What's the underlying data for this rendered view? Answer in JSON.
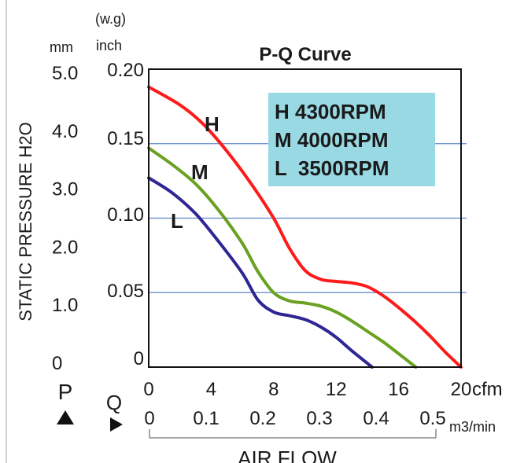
{
  "chart_data": {
    "type": "line",
    "title": "P-Q Curve",
    "ylabel": "STATIC PRESSURE H2O",
    "xlabel": "AIR FLOW",
    "y_axis_inch": {
      "unit_top": "(w.g)",
      "unit": "inch",
      "range": [
        0,
        0.2
      ],
      "ticks": [
        "0.20",
        "0.15",
        "0.10",
        "0.05",
        "0"
      ]
    },
    "y_axis_mm": {
      "unit": "mm",
      "ticks": [
        "5.0",
        "4.0",
        "3.0",
        "2.0",
        "1.0",
        "0"
      ],
      "values": [
        5.0,
        4.0,
        3.0,
        2.0,
        1.0,
        0
      ]
    },
    "x_axis_cfm": {
      "unit": "cfm",
      "range": [
        0,
        20
      ],
      "ticks": [
        "0",
        "4",
        "8",
        "12",
        "16",
        "20"
      ]
    },
    "x_axis_m3": {
      "unit": "m3/min",
      "ticks": [
        "0",
        "0.1",
        "0.2",
        "0.3",
        "0.4",
        "0.5"
      ]
    },
    "gridlines_inch": [
      0.05,
      0.1,
      0.15
    ],
    "p_label": "P",
    "q_label": "Q",
    "legend": [
      "H 4300RPM",
      "M 4000RPM",
      "L  3500RPM"
    ],
    "legend_placement": "top-right",
    "series": [
      {
        "name": "H",
        "color": "#ff1a1a",
        "points": [
          [
            0,
            0.188
          ],
          [
            2,
            0.176
          ],
          [
            3.5,
            0.163
          ],
          [
            5,
            0.145
          ],
          [
            6.5,
            0.124
          ],
          [
            8,
            0.1
          ],
          [
            9,
            0.08
          ],
          [
            10,
            0.065
          ],
          [
            11,
            0.059
          ],
          [
            12,
            0.0575
          ],
          [
            13,
            0.0565
          ],
          [
            14,
            0.054
          ],
          [
            15,
            0.048
          ],
          [
            16,
            0.04
          ],
          [
            17,
            0.031
          ],
          [
            18,
            0.021
          ],
          [
            19,
            0.01
          ],
          [
            20,
            0
          ]
        ]
      },
      {
        "name": "M",
        "color": "#6aa121",
        "points": [
          [
            0,
            0.147
          ],
          [
            1.5,
            0.136
          ],
          [
            3,
            0.123
          ],
          [
            4.5,
            0.105
          ],
          [
            6,
            0.083
          ],
          [
            7,
            0.064
          ],
          [
            8,
            0.05
          ],
          [
            9,
            0.0445
          ],
          [
            10,
            0.043
          ],
          [
            11,
            0.041
          ],
          [
            12,
            0.037
          ],
          [
            13,
            0.031
          ],
          [
            14,
            0.024
          ],
          [
            15,
            0.017
          ],
          [
            16,
            0.009
          ],
          [
            17.1,
            0
          ]
        ]
      },
      {
        "name": "L",
        "color": "#2e2694",
        "points": [
          [
            0,
            0.127
          ],
          [
            1.5,
            0.117
          ],
          [
            3,
            0.103
          ],
          [
            4.5,
            0.084
          ],
          [
            6,
            0.063
          ],
          [
            7,
            0.045
          ],
          [
            8,
            0.037
          ],
          [
            9,
            0.0345
          ],
          [
            10,
            0.032
          ],
          [
            11,
            0.027
          ],
          [
            12,
            0.02
          ],
          [
            13,
            0.011
          ],
          [
            14.3,
            0
          ]
        ]
      }
    ]
  }
}
